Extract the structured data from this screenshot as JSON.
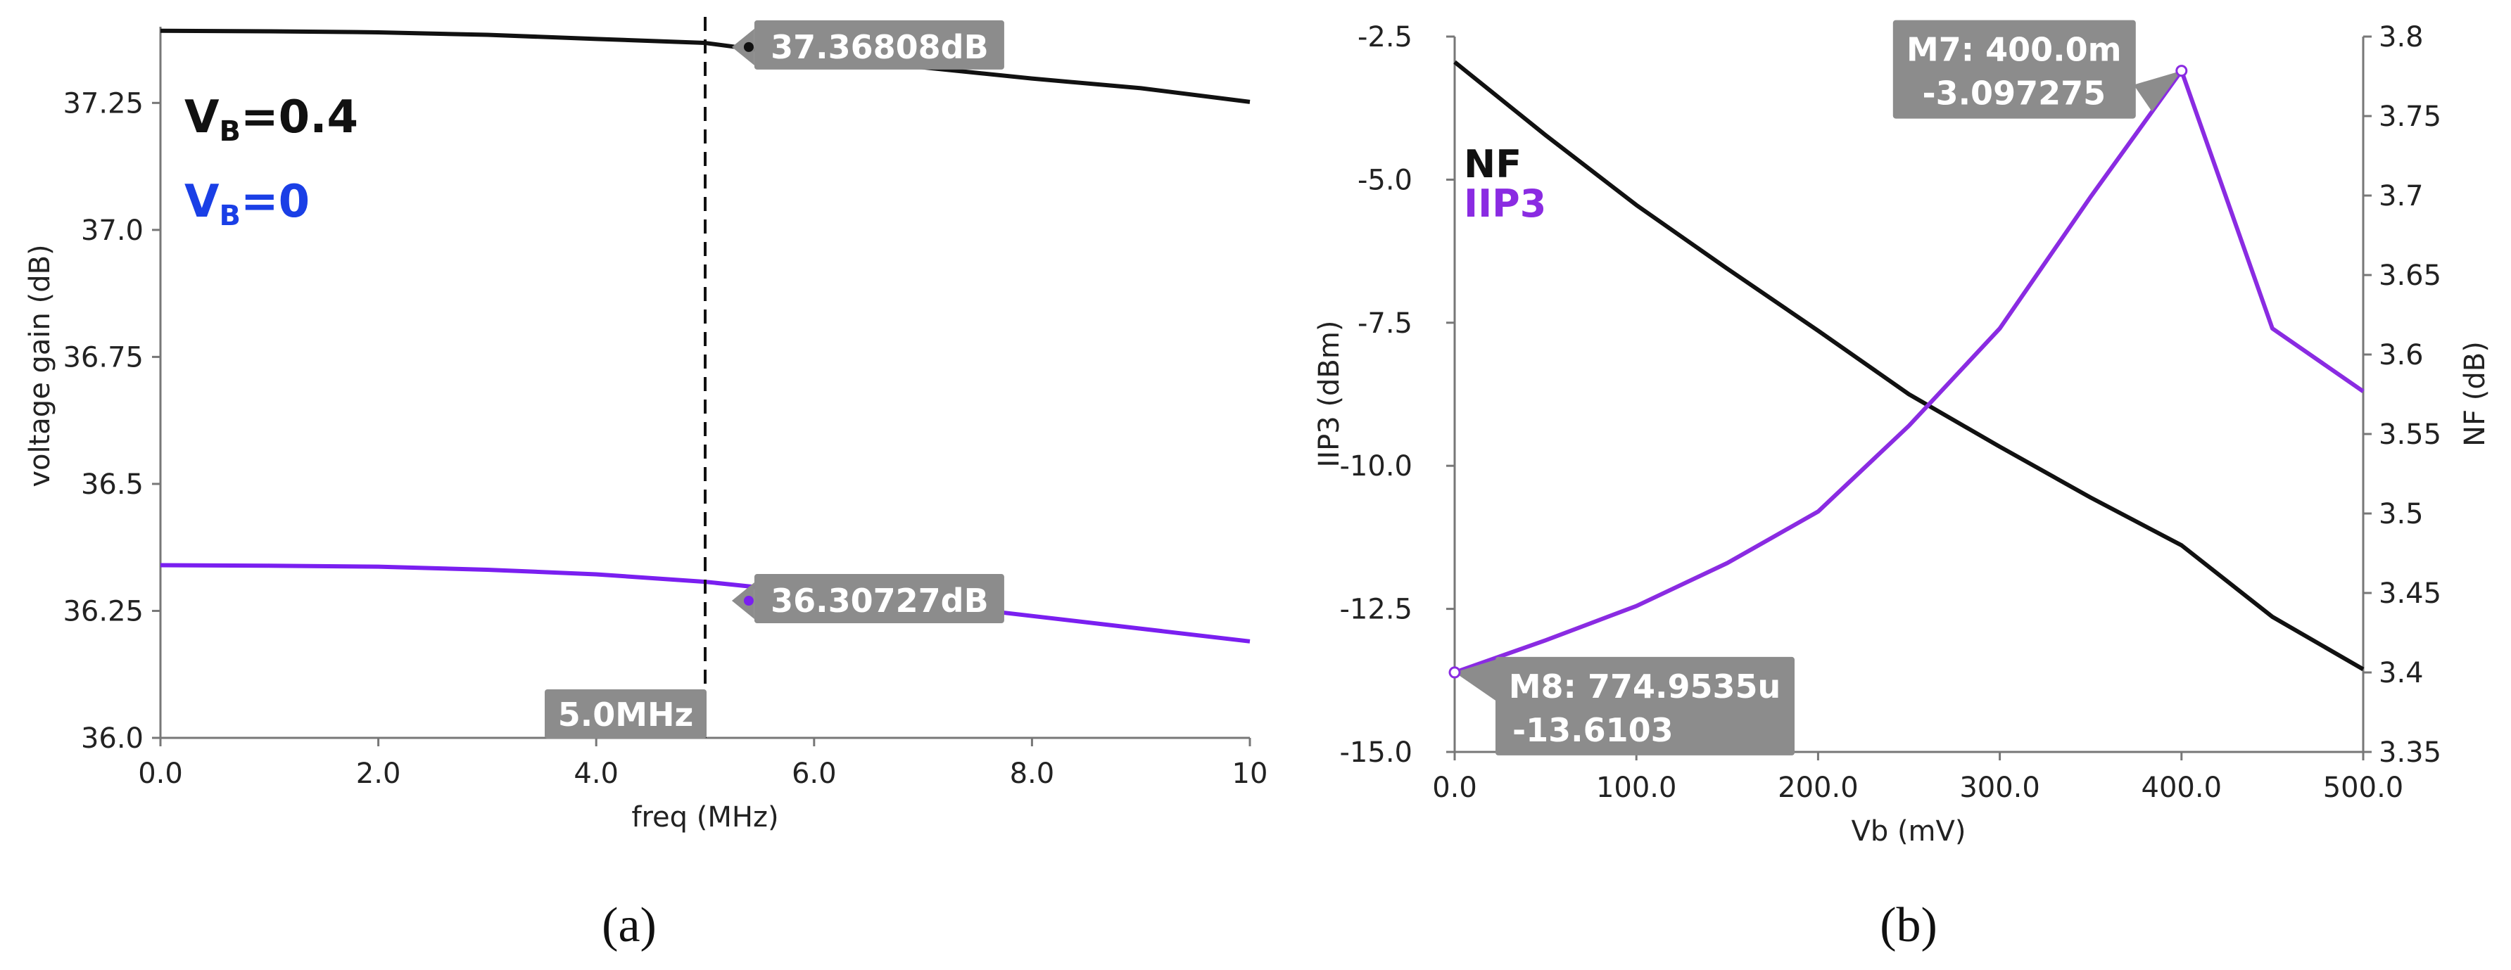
{
  "chart_data": [
    {
      "type": "line",
      "panel_label": "(a)",
      "xlabel": "freq (MHz)",
      "ylabel": "voltage gain (dB)",
      "xlim": [
        0,
        10
      ],
      "ylim": [
        36.0,
        37.4
      ],
      "x_ticks": [
        0,
        2,
        4,
        6,
        8,
        10
      ],
      "x_tick_labels": [
        "0.0",
        "2.0",
        "4.0",
        "6.0",
        "8.0",
        "10"
      ],
      "y_ticks": [
        36.0,
        36.25,
        36.5,
        36.75,
        37.0,
        37.25
      ],
      "y_tick_labels": [
        "36.0",
        "36.25",
        "36.5",
        "36.75",
        "37.0",
        "37.25"
      ],
      "legend": [
        {
          "label_main": "V",
          "label_sub": "B",
          "label_rest": "=0.4",
          "color": "#111111"
        },
        {
          "label_main": "V",
          "label_sub": "B",
          "label_rest": "=0",
          "color": "#1a3fe6"
        }
      ],
      "series": [
        {
          "color": "#111111",
          "x": [
            0,
            1,
            2,
            3,
            4,
            5,
            6,
            7,
            8,
            9,
            10
          ],
          "y": [
            37.392,
            37.391,
            37.389,
            37.384,
            37.376,
            37.36808,
            37.34,
            37.32,
            37.298,
            37.279,
            37.252
          ]
        },
        {
          "color": "#7a1ff0",
          "x": [
            0,
            1,
            2,
            3,
            4,
            5,
            6,
            7,
            8,
            9,
            10
          ],
          "y": [
            36.34,
            36.339,
            36.337,
            36.331,
            36.322,
            36.30727,
            36.285,
            36.265,
            36.24,
            36.215,
            36.19
          ]
        }
      ],
      "cursor": {
        "x": 5.0,
        "label": "5.0MHz"
      },
      "markers": [
        {
          "x": 5.4,
          "y": 37.36,
          "label": "37.36808dB"
        },
        {
          "x": 5.4,
          "y": 36.27,
          "label": "36.30727dB"
        }
      ]
    },
    {
      "type": "line",
      "panel_label": "(b)",
      "xlabel": "Vb (mV)",
      "ylabel_left": "IIP3 (dBm)",
      "ylabel_right": "NF (dB)",
      "xlim": [
        0,
        500
      ],
      "ylim_left": [
        -15,
        -2.5
      ],
      "ylim_right": [
        3.35,
        3.8
      ],
      "x_ticks": [
        0,
        100,
        200,
        300,
        400,
        500
      ],
      "x_tick_labels": [
        "0.0",
        "100.0",
        "200.0",
        "300.0",
        "400.0",
        "500.0"
      ],
      "y_left_ticks": [
        -15,
        -12.5,
        -10,
        -7.5,
        -5,
        -2.5
      ],
      "y_left_tick_labels": [
        "-15.0",
        "-12.5",
        "-10.0",
        "-7.5",
        "-5.0",
        "-2.5"
      ],
      "y_right_ticks": [
        3.35,
        3.4,
        3.45,
        3.5,
        3.55,
        3.6,
        3.65,
        3.7,
        3.75,
        3.8
      ],
      "y_right_tick_labels": [
        "3.35",
        "3.4",
        "3.45",
        "3.5",
        "3.55",
        "3.6",
        "3.65",
        "3.7",
        "3.75",
        "3.8"
      ],
      "legend": [
        {
          "label": "NF",
          "color": "#111111"
        },
        {
          "label": "IIP3",
          "color": "#8a2be2"
        }
      ],
      "series": [
        {
          "axis": "right",
          "color": "#111111",
          "x": [
            0,
            50,
            100,
            150,
            200,
            250,
            300,
            350,
            400,
            450,
            500
          ],
          "y": [
            3.784,
            3.738,
            3.694,
            3.654,
            3.615,
            3.575,
            3.542,
            3.51,
            3.48,
            3.435,
            3.402
          ]
        },
        {
          "axis": "left",
          "color": "#8a2be2",
          "x": [
            0,
            50,
            100,
            150,
            200,
            250,
            300,
            350,
            400,
            450,
            500
          ],
          "y": [
            -13.6103,
            -13.05,
            -12.45,
            -11.7,
            -10.8,
            -9.3,
            -7.6,
            -5.3,
            -3.097275,
            -7.6,
            -8.7
          ]
        }
      ],
      "markers": [
        {
          "name": "M7",
          "x": 400,
          "y": -3.097275,
          "line1": "M7: 400.0m",
          "line2": "-3.097275"
        },
        {
          "name": "M8",
          "x": 0,
          "y": -13.6103,
          "line1": "M8: 774.9535u",
          "line2": "-13.6103"
        }
      ]
    }
  ]
}
